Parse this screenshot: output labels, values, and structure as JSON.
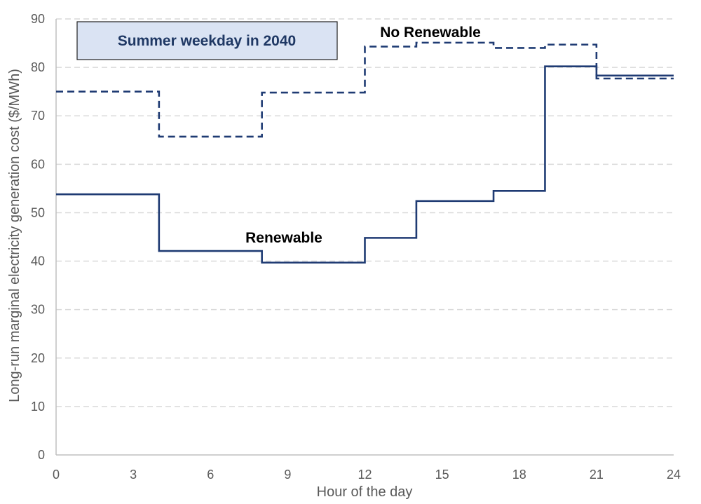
{
  "chart_data": {
    "type": "line",
    "step": true,
    "annotation_box": "Summer weekday in 2040",
    "xlabel": "Hour of the day",
    "ylabel": "Long-run marginal electricity generation cost ($/MWh)",
    "xlim": [
      0,
      24
    ],
    "ylim": [
      0,
      90
    ],
    "xticks": [
      0,
      3,
      6,
      9,
      12,
      15,
      18,
      21,
      24
    ],
    "yticks": [
      0,
      10,
      20,
      30,
      40,
      50,
      60,
      70,
      80,
      90
    ],
    "grid": "horizontal dashed",
    "series": [
      {
        "name": "No Renewable",
        "style": "dashed",
        "color": "#1f3b73",
        "steps": [
          {
            "x0": 0,
            "x1": 4,
            "y": 75
          },
          {
            "x0": 4,
            "x1": 8,
            "y": 65.7
          },
          {
            "x0": 8,
            "x1": 12,
            "y": 74.8
          },
          {
            "x0": 12,
            "x1": 14,
            "y": 84.3
          },
          {
            "x0": 14,
            "x1": 17,
            "y": 85.1
          },
          {
            "x0": 17,
            "x1": 19,
            "y": 84
          },
          {
            "x0": 19,
            "x1": 21,
            "y": 84.7
          },
          {
            "x0": 21,
            "x1": 24,
            "y": 77.7
          }
        ]
      },
      {
        "name": "Renewable",
        "style": "solid",
        "color": "#1f3b73",
        "steps": [
          {
            "x0": 0,
            "x1": 4,
            "y": 53.8
          },
          {
            "x0": 4,
            "x1": 8,
            "y": 42.1
          },
          {
            "x0": 8,
            "x1": 12,
            "y": 39.7
          },
          {
            "x0": 12,
            "x1": 14,
            "y": 44.8
          },
          {
            "x0": 14,
            "x1": 17,
            "y": 52.4
          },
          {
            "x0": 17,
            "x1": 19,
            "y": 54.5
          },
          {
            "x0": 19,
            "x1": 21,
            "y": 80.2
          },
          {
            "x0": 21,
            "x1": 24,
            "y": 78.3
          }
        ]
      }
    ]
  }
}
